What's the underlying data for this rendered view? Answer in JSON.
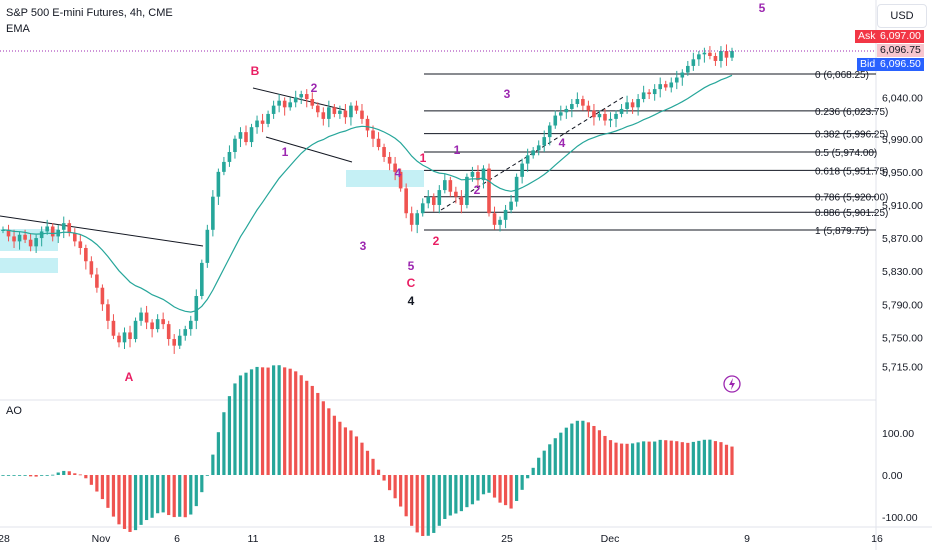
{
  "header": {
    "symbol_line": "S&P 500 E-mini Futures, 4h, CME",
    "indicator": "EMA",
    "currency": "USD"
  },
  "price_boxes": {
    "ask_label": "Ask",
    "ask_value": "6,097.00",
    "last_value": "6,096.75",
    "bid_label": "Bid",
    "bid_value": "6,096.50"
  },
  "oscillator": {
    "label": "AO"
  },
  "colors": {
    "up": "#26a69a",
    "down": "#ef5350",
    "ema": "#26a69a",
    "wave_label": "#9c27b0",
    "abc_label": "#e91e63",
    "zone": "#b2ebf2",
    "ask": "#f23645",
    "bid": "#2962ff"
  },
  "chart_data": {
    "type": "candlestick",
    "title": "S&P 500 E-mini Futures, 4h, CME",
    "y_axis_ticks": [
      "6,040.00",
      "5,990.00",
      "5,950.00",
      "5,910.00",
      "5,870.00",
      "5,830.00",
      "5,790.00",
      "5,750.00",
      "5,715.00"
    ],
    "x_axis_ticks": [
      "28",
      "Nov",
      "6",
      "11",
      "18",
      "25",
      "Dec",
      "9",
      "16"
    ],
    "ao_axis_ticks": [
      "100.00",
      "0.00",
      "-100.00"
    ],
    "fibonacci_levels": [
      {
        "label": "0 (6,068.25)",
        "ratio": 0,
        "price": 6068.25
      },
      {
        "label": "0.236 (6,023.75)",
        "ratio": 0.236,
        "price": 6023.75
      },
      {
        "label": "0.382 (5,996.25)",
        "ratio": 0.382,
        "price": 5996.25
      },
      {
        "label": "0.5 (5,974.00)",
        "ratio": 0.5,
        "price": 5974.0
      },
      {
        "label": "0.618 (5,951.75)",
        "ratio": 0.618,
        "price": 5951.75
      },
      {
        "label": "0.786 (5,920.00)",
        "ratio": 0.786,
        "price": 5920.0
      },
      {
        "label": "0.886 (5,901.25)",
        "ratio": 0.886,
        "price": 5901.25
      },
      {
        "label": "1 (5,879.75)",
        "ratio": 1,
        "price": 5879.75
      }
    ],
    "wave_labels": [
      {
        "text": "A",
        "group": "abc"
      },
      {
        "text": "B",
        "group": "abc"
      },
      {
        "text": "C",
        "group": "abc"
      },
      {
        "text": "1",
        "group": "minor"
      },
      {
        "text": "2",
        "group": "minor"
      },
      {
        "text": "3",
        "group": "minor"
      },
      {
        "text": "4",
        "group": "minor"
      },
      {
        "text": "5",
        "group": "minor"
      },
      {
        "text": "1",
        "group": "new"
      },
      {
        "text": "2",
        "group": "new"
      },
      {
        "text": "3",
        "group": "new"
      },
      {
        "text": "4",
        "group": "new"
      },
      {
        "text": "5",
        "group": "new"
      },
      {
        "text": "1",
        "group": "abc"
      },
      {
        "text": "2",
        "group": "abc"
      },
      {
        "text": "4",
        "group": "primary"
      }
    ],
    "candles": [
      5880,
      5872,
      5866,
      5874,
      5868,
      5860,
      5870,
      5878,
      5884,
      5872,
      5880,
      5888,
      5876,
      5866,
      5858,
      5842,
      5826,
      5810,
      5790,
      5770,
      5752,
      5744,
      5756,
      5748,
      5770,
      5780,
      5768,
      5760,
      5772,
      5766,
      5748,
      5740,
      5752,
      5760,
      5770,
      5800,
      5840,
      5880,
      5920,
      5950,
      5962,
      5974,
      5990,
      5998,
      5986,
      6004,
      6012,
      6008,
      6020,
      6030,
      6036,
      6028,
      6034,
      6040,
      6044,
      6038,
      6030,
      6022,
      6014,
      6028,
      6020,
      6024,
      6016,
      6030,
      6024,
      6014,
      6000,
      5990,
      5980,
      5968,
      5960,
      5950,
      5930,
      5900,
      5886,
      5900,
      5912,
      5920,
      5910,
      5928,
      5940,
      5926,
      5920,
      5910,
      5944,
      5950,
      5940,
      5954,
      5900,
      5886,
      5892,
      5904,
      5914,
      5944,
      5960,
      5970,
      5976,
      5982,
      5992,
      6006,
      6018,
      6022,
      6026,
      6032,
      6038,
      6030,
      6024,
      6016,
      6020,
      6012,
      6014,
      6020,
      6026,
      6034,
      6028,
      6038,
      6046,
      6044,
      6050,
      6056,
      6052,
      6058,
      6064,
      6070,
      6078,
      6086,
      6092,
      6094,
      6090,
      6084,
      6096,
      6088,
      6096
    ],
    "ylim": [
      5700,
      6110
    ]
  }
}
